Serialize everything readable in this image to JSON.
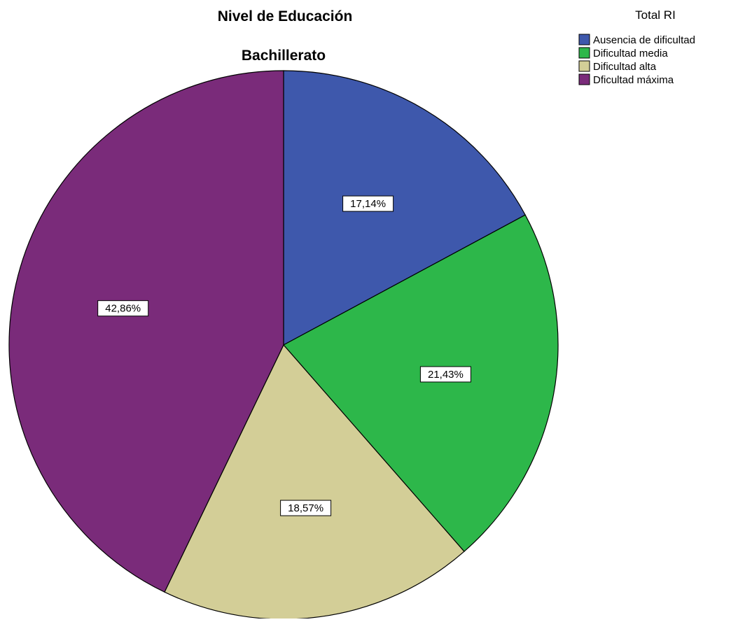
{
  "chart_data": {
    "type": "pie",
    "title": "Nivel de Educación",
    "subtitle": "Bachillerato",
    "legend_title": "Total RI",
    "legend_position": "top-right",
    "start_angle_deg": 0,
    "direction": "clockwise",
    "categories": [
      "Ausencia de dificultad",
      "Dificultad media",
      "Dificultad alta",
      "Dficultad máxima"
    ],
    "values": [
      17.14,
      21.43,
      18.57,
      42.86
    ],
    "labels": [
      "17,14%",
      "21,43%",
      "18,57%",
      "42,86%"
    ],
    "colors": [
      "#3e58ac",
      "#2db74a",
      "#d3ce97",
      "#7a2b7a"
    ]
  }
}
